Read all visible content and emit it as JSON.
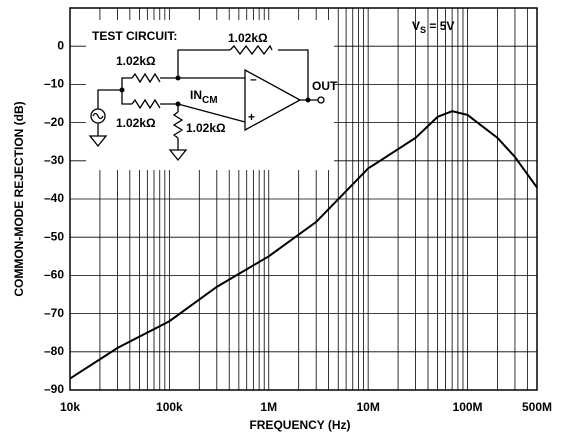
{
  "chart_data": {
    "type": "line",
    "xlabel": "FREQUENCY (Hz)",
    "ylabel": "COMMON-MODE REJECTION (dB)",
    "xlog": true,
    "grid": true,
    "xlim": [
      10000,
      500000000
    ],
    "xticks": [
      {
        "value": 10000,
        "label": "10k"
      },
      {
        "value": 100000,
        "label": "100k"
      },
      {
        "value": 1000000,
        "label": "1M"
      },
      {
        "value": 10000000,
        "label": "10M"
      },
      {
        "value": 100000000,
        "label": "100M"
      },
      {
        "value": 500000000,
        "label": "500M"
      }
    ],
    "ylim": [
      -90,
      10
    ],
    "yticks": [
      {
        "value": -90,
        "label": "–90"
      },
      {
        "value": -80,
        "label": "–80"
      },
      {
        "value": -70,
        "label": "–70"
      },
      {
        "value": -60,
        "label": "–60"
      },
      {
        "value": -50,
        "label": "–50"
      },
      {
        "value": -40,
        "label": "–40"
      },
      {
        "value": -30,
        "label": "–30"
      },
      {
        "value": -20,
        "label": "–20"
      },
      {
        "value": -10,
        "label": "–10"
      },
      0
    ],
    "x": [
      10000,
      30000,
      100000,
      300000,
      1000000,
      3000000,
      10000000,
      30000000,
      50000000,
      70000000,
      100000000,
      200000000,
      300000000,
      500000000
    ],
    "series": [
      {
        "color": "#000000",
        "values": [
          -87,
          -79,
          -72,
          -63,
          -55,
          -46,
          -32,
          -24,
          -18.5,
          -17,
          -18,
          -24,
          -29,
          -37
        ]
      }
    ],
    "annotations": {
      "supply": {
        "main": "V",
        "sub": "S",
        "rest": " = 5V"
      },
      "circuit": {
        "title": "TEST CIRCUIT:",
        "r_feedback": "1.02kΩ",
        "r_in_top": "1.02kΩ",
        "r_in_bottom": "1.02kΩ",
        "r_ground": "1.02kΩ",
        "input": {
          "main": "IN",
          "sub": "CM"
        },
        "output": "OUT",
        "minus": "–",
        "plus": "+"
      }
    }
  }
}
